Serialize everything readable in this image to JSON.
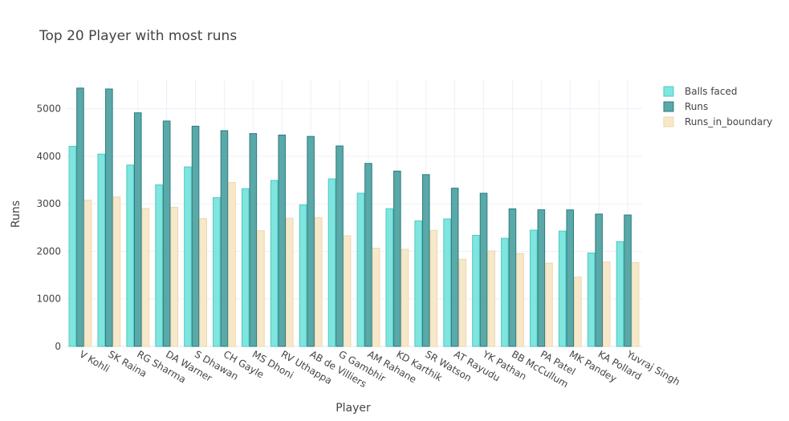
{
  "chart_data": {
    "type": "bar",
    "title": "Top 20 Player with most runs",
    "xlabel": "Player",
    "ylabel": "Runs",
    "ylim": [
      0,
      5600
    ],
    "yticks": [
      0,
      1000,
      2000,
      3000,
      4000,
      5000
    ],
    "grid": true,
    "legend_position": "top-right",
    "categories": [
      "V Kohli",
      "SK Raina",
      "RG Sharma",
      "DA Warner",
      "S Dhawan",
      "CH Gayle",
      "MS Dhoni",
      "RV Uthappa",
      "AB de Villiers",
      "G Gambhir",
      "AM Rahane",
      "KD Karthik",
      "SR Watson",
      "AT Rayudu",
      "YK Pathan",
      "BB McCullum",
      "PA Patel",
      "MK Pandey",
      "KA Pollard",
      "Yuvraj Singh"
    ],
    "series": [
      {
        "name": "Balls faced",
        "color": "#7fe5df",
        "stroke": "#4fc9c2",
        "values": [
          4210,
          4045,
          3816,
          3398,
          3776,
          3131,
          3318,
          3492,
          2977,
          3524,
          3223,
          2896,
          2640,
          2682,
          2337,
          2275,
          2446,
          2426,
          1965,
          2205
        ]
      },
      {
        "name": "Runs",
        "color": "#5aa8a8",
        "stroke": "#2a7d80",
        "values": [
          5434,
          5415,
          4914,
          4741,
          4632,
          4538,
          4477,
          4446,
          4417,
          4217,
          3850,
          3688,
          3614,
          3329,
          3222,
          2893,
          2874,
          2872,
          2784,
          2765
        ]
      },
      {
        "name": "Runs_in_boundary",
        "color": "#f8e8ca",
        "stroke": "#ecd6ad",
        "values": [
          3076,
          3146,
          2902,
          2926,
          2688,
          3448,
          2432,
          2696,
          2710,
          2326,
          2066,
          2042,
          2440,
          1834,
          2008,
          1954,
          1752,
          1460,
          1776,
          1764
        ]
      }
    ]
  }
}
